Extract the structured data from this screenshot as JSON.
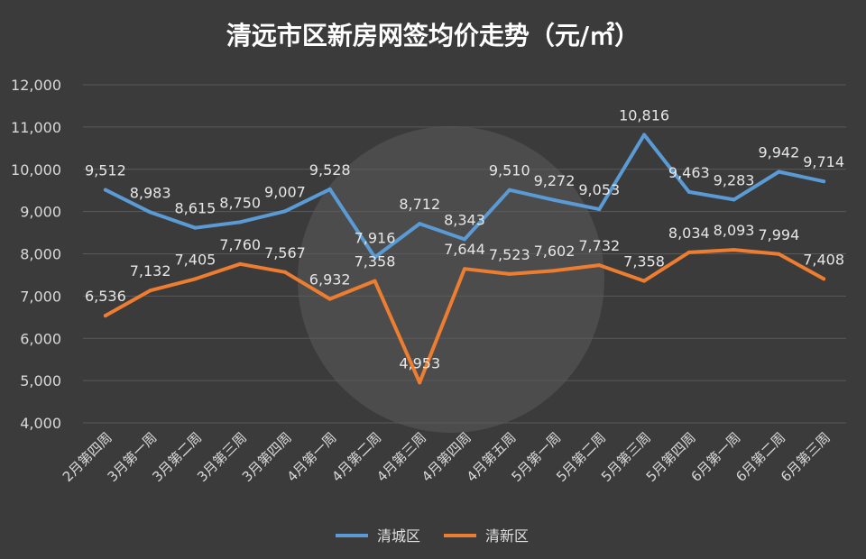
{
  "chart_data": {
    "type": "line",
    "title": "清远市区新房网签均价走势（元/㎡）",
    "xlabel": "",
    "ylabel": "",
    "ylim": [
      4000,
      12000
    ],
    "yticks": [
      4000,
      5000,
      6000,
      7000,
      8000,
      9000,
      10000,
      11000,
      12000
    ],
    "ytick_labels": [
      "4,000",
      "5,000",
      "6,000",
      "7,000",
      "8,000",
      "9,000",
      "10,000",
      "11,000",
      "12,000"
    ],
    "grid": true,
    "legend_position": "bottom",
    "categories": [
      "2月第四周",
      "3月第一周",
      "3月第二周",
      "3月第三周",
      "3月第四周",
      "4月第一周",
      "4月第二周",
      "4月第三周",
      "4月第四周",
      "4月第五周",
      "5月第一周",
      "5月第二周",
      "5月第三周",
      "5月第四周",
      "6月第一周",
      "6月第二周",
      "6月第三周"
    ],
    "series": [
      {
        "name": "清城区",
        "color": "#5b9bd5",
        "values": [
          9512,
          8983,
          8615,
          8750,
          9007,
          9528,
          7916,
          8712,
          8343,
          9510,
          9272,
          9053,
          10816,
          9463,
          9283,
          9942,
          9714
        ],
        "labels": [
          "9,512",
          "8,983",
          "8,615",
          "8,750",
          "9,007",
          "9,528",
          "7,916",
          "8,712",
          "8,343",
          "9,510",
          "9,272",
          "9,053",
          "10,816",
          "9,463",
          "9,283",
          "9,942",
          "9,714"
        ]
      },
      {
        "name": "清新区",
        "color": "#ed7d31",
        "values": [
          6536,
          7132,
          7405,
          7760,
          7567,
          6932,
          7358,
          4953,
          7644,
          7523,
          7602,
          7732,
          7358,
          8034,
          8093,
          7994,
          7408
        ],
        "labels": [
          "6,536",
          "7,132",
          "7,405",
          "7,760",
          "7,567",
          "6,932",
          "7,358",
          "4,953",
          "7,644",
          "7,523",
          "7,602",
          "7,732",
          "7,358",
          "8,034",
          "8,093",
          "7,994",
          "7,408"
        ]
      }
    ]
  }
}
